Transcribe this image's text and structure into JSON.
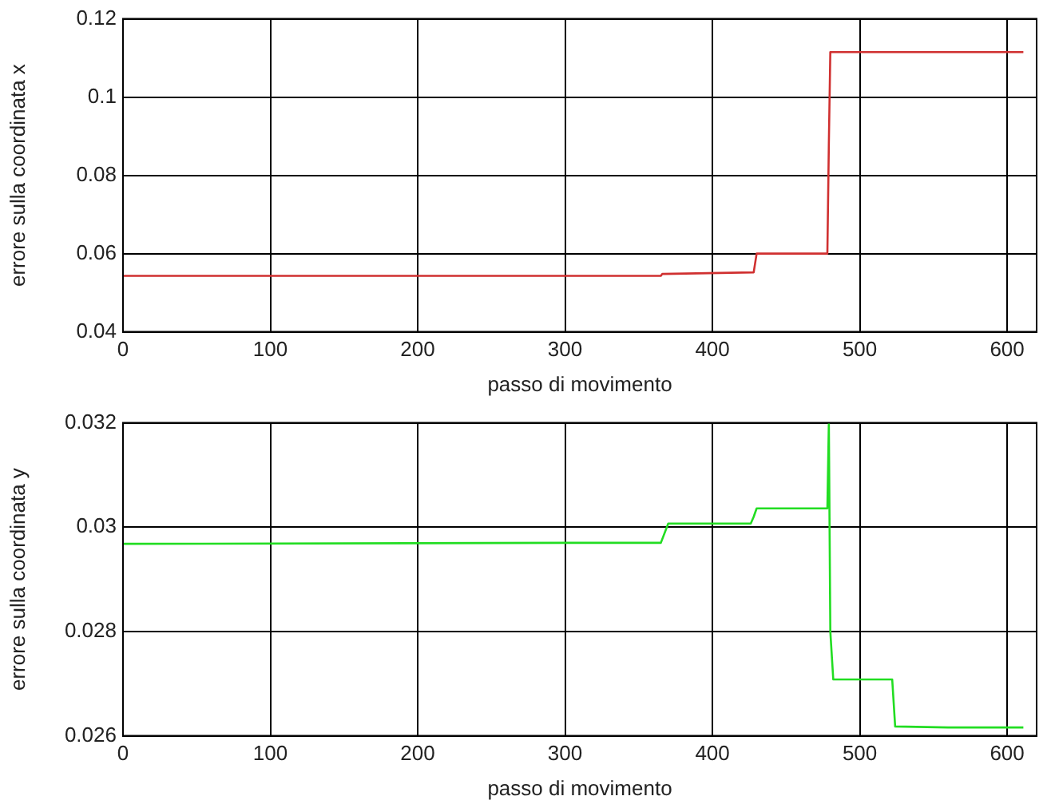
{
  "chart_data": [
    {
      "type": "line",
      "xlabel": "passo di movimento",
      "ylabel": "errore sulla coordinata x",
      "x": [
        0,
        365,
        366,
        428,
        430,
        478,
        479,
        480,
        611
      ],
      "series": [
        {
          "color": "#d03030",
          "values": [
            0.0543,
            0.0543,
            0.0548,
            0.0552,
            0.06,
            0.06,
            0.088,
            0.1115,
            0.1115
          ]
        }
      ],
      "xlim": [
        0,
        620
      ],
      "xticks": [
        0,
        100,
        200,
        300,
        400,
        500,
        600
      ],
      "ylim": [
        0.04,
        0.12
      ],
      "yticks": [
        0.04,
        0.06,
        0.08,
        0.1,
        0.12
      ],
      "grid": true,
      "line_style": "solid",
      "marker": "none"
    },
    {
      "type": "line",
      "xlabel": "passo di movimento",
      "ylabel": "errore sulla coordinata y",
      "x": [
        0,
        300,
        365,
        370,
        426,
        428,
        430,
        478,
        479,
        480,
        482,
        522,
        524,
        560,
        611
      ],
      "series": [
        {
          "color": "#22dd22",
          "values": [
            0.02968,
            0.0297,
            0.0297,
            0.03007,
            0.03007,
            0.0302,
            0.03036,
            0.03036,
            0.032,
            0.028,
            0.02708,
            0.02708,
            0.02618,
            0.02616,
            0.02616
          ]
        }
      ],
      "xlim": [
        0,
        620
      ],
      "xticks": [
        0,
        100,
        200,
        300,
        400,
        500,
        600
      ],
      "ylim": [
        0.026,
        0.032
      ],
      "yticks": [
        0.026,
        0.028,
        0.03,
        0.032
      ],
      "grid": true,
      "line_style": "solid",
      "marker": "none"
    }
  ]
}
